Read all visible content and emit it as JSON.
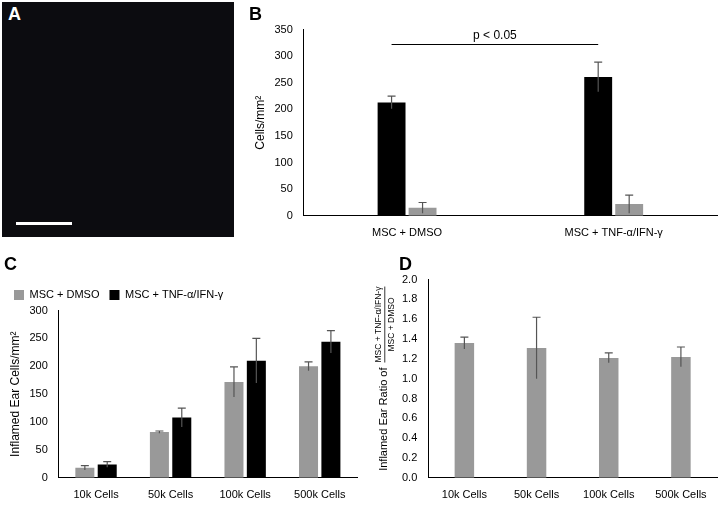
{
  "panel_image": {
    "label": "A"
  },
  "chart_data": [
    {
      "type": "bar",
      "title": "B",
      "categories": [
        "MSC + DMSO",
        "MSC + TNF-α/IFN-γ"
      ],
      "series": [
        {
          "color": "#000000",
          "values": [
            213,
            261
          ],
          "errors": [
            12,
            28
          ]
        },
        {
          "color": "#999999",
          "values": [
            15,
            22
          ],
          "errors": [
            10,
            17
          ]
        }
      ],
      "ylabel": "Cells/mm²",
      "ylim": [
        0,
        350
      ],
      "yticks": [
        0,
        50,
        100,
        150,
        200,
        250,
        300,
        350
      ],
      "grid": false,
      "annotations": [
        "p < 0.05"
      ]
    },
    {
      "type": "bar",
      "title": "C",
      "categories": [
        "10k Cells",
        "50k Cells",
        "100k Cells",
        "500k Cells"
      ],
      "series": [
        {
          "name": "MSC + DMSO",
          "color": "#999999",
          "values": [
            18,
            82,
            172,
            200
          ],
          "errors": [
            4,
            2,
            27,
            8
          ]
        },
        {
          "name": "MSC + TNF-α/IFN-γ",
          "color": "#000000",
          "values": [
            24,
            108,
            210,
            244
          ],
          "errors": [
            5,
            17,
            40,
            20
          ]
        }
      ],
      "ylabel": "Inflamed Ear Cells/mm²",
      "ylim": [
        0,
        300
      ],
      "yticks": [
        0,
        50,
        100,
        150,
        200,
        250,
        300
      ],
      "grid": false,
      "legend": "top-left"
    },
    {
      "type": "bar",
      "title": "D",
      "categories": [
        "10k Cells",
        "50k Cells",
        "100k Cells",
        "500k Cells"
      ],
      "series": [
        {
          "color": "#999999",
          "values": [
            1.36,
            1.31,
            1.21,
            1.22
          ],
          "errors": [
            0.06,
            0.31,
            0.05,
            0.1
          ]
        }
      ],
      "ylabel": {
        "text": "Inflamed Ear Ratio of",
        "numerator": "MSC + TNF-α/IFN-γ",
        "denominator": "MSC + DMSO"
      },
      "ylim": [
        0,
        2
      ],
      "yticks": [
        {
          "value": 0,
          "label": "0.0"
        },
        0.2,
        0.4,
        0.6,
        0.8,
        {
          "value": 1,
          "label": "1.0"
        },
        1.2,
        1.4,
        1.6,
        1.8,
        {
          "value": 2,
          "label": "2.0"
        }
      ],
      "grid": false
    }
  ]
}
